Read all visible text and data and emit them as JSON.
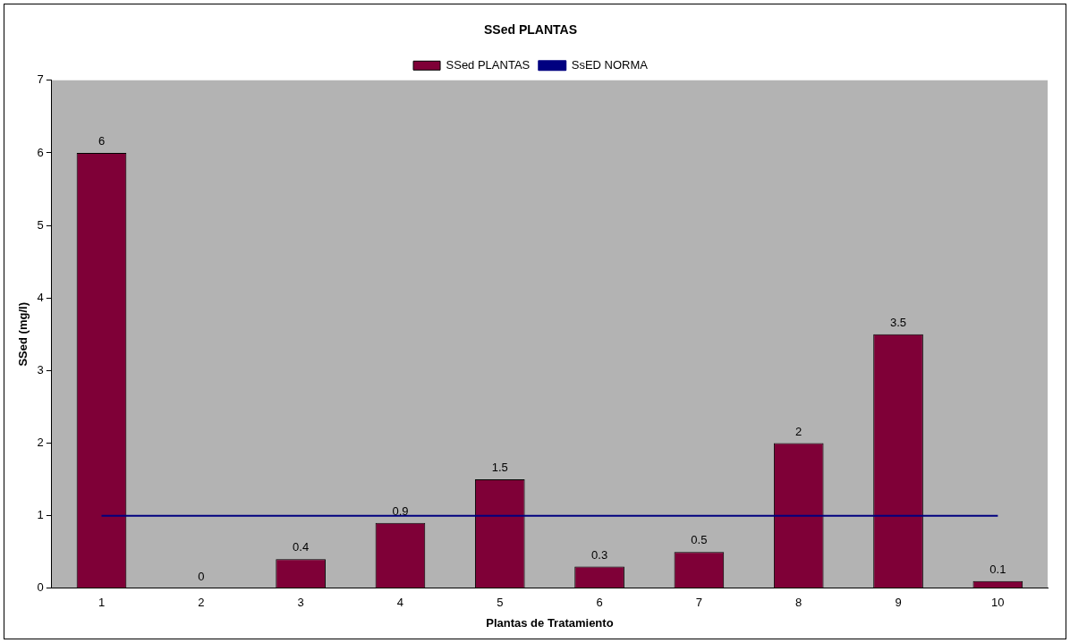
{
  "chart_data": {
    "type": "bar",
    "title": "SSed PLANTAS",
    "xlabel": "Plantas de Tratamiento",
    "ylabel": "SSed (mg/l)",
    "categories": [
      "1",
      "2",
      "3",
      "4",
      "5",
      "6",
      "7",
      "8",
      "9",
      "10"
    ],
    "series": [
      {
        "name": "SSed PLANTAS",
        "color": "#7f0037",
        "values": [
          6,
          0,
          0.4,
          0.9,
          1.5,
          0.3,
          0.5,
          2,
          3.5,
          0.1
        ],
        "value_labels": [
          "6",
          "0",
          "0.4",
          "0.9",
          "1.5",
          "0.3",
          "0.5",
          "2",
          "3.5",
          "0.1"
        ]
      },
      {
        "name": "SsED NORMA",
        "type": "line",
        "color": "#000080",
        "marker": "none",
        "values": [
          1,
          1,
          1,
          1,
          1,
          1,
          1,
          1,
          1,
          1
        ]
      }
    ],
    "ylim": [
      0,
      7
    ],
    "yticks": [
      0,
      1,
      2,
      3,
      4,
      5,
      6,
      7
    ],
    "grid": false,
    "legend": "top"
  }
}
